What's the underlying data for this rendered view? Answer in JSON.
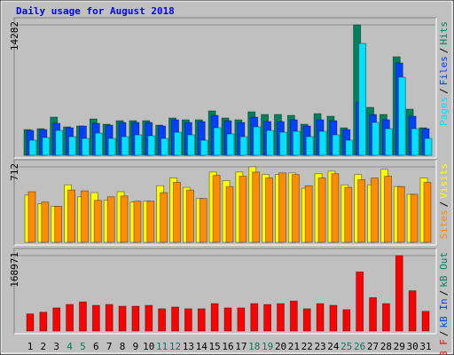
{
  "chart_data": [
    {
      "type": "bar",
      "title": "Daily usage for August 2018",
      "ylim": [
        0,
        14282
      ],
      "yticks": [
        14282
      ],
      "legend_separator": "/",
      "series": [
        {
          "name": "Hits",
          "color": "#00805c",
          "values": [
            2819,
            2916,
            4180,
            3110,
            3208,
            3985,
            3402,
            3791,
            3791,
            3791,
            3305,
            4083,
            3888,
            3888,
            4860,
            4083,
            3888,
            4763,
            4471,
            4471,
            4374,
            3402,
            4568,
            4277,
            3013,
            14282,
            5249,
            4471,
            10789,
            5054,
            3013
          ]
        },
        {
          "name": "Files",
          "color": "#0040ff",
          "values": [
            2722,
            2819,
            3499,
            3013,
            3208,
            3499,
            3305,
            3596,
            3596,
            3596,
            3208,
            3888,
            3596,
            3694,
            4374,
            3791,
            3596,
            4180,
            3694,
            3694,
            3888,
            3208,
            3888,
            3791,
            2819,
            5832,
            4471,
            3888,
            10109,
            4277,
            2916
          ]
        },
        {
          "name": "Pages",
          "color": "#00e0ff",
          "values": [
            1652,
            1944,
            2722,
            2041,
            1847,
            2430,
            1847,
            2041,
            2236,
            2138,
            1847,
            2527,
            2236,
            1652,
            3013,
            2333,
            2041,
            3110,
            2722,
            2527,
            2624,
            2041,
            2624,
            2236,
            1652,
            12247,
            3596,
            2916,
            8554,
            2916,
            1847
          ]
        }
      ]
    },
    {
      "type": "bar",
      "ylim": [
        0,
        712
      ],
      "yticks": [
        712
      ],
      "legend_separator": "/",
      "series": [
        {
          "name": "Visits",
          "color": "#ffff00",
          "values": [
            445,
            364,
            340,
            542,
            429,
            469,
            396,
            477,
            380,
            388,
            534,
            607,
            518,
            413,
            663,
            582,
            663,
            712,
            639,
            639,
            655,
            510,
            647,
            671,
            542,
            639,
            542,
            688,
            526,
            453,
            607
          ]
        },
        {
          "name": "Sites",
          "color": "#ff8c00",
          "values": [
            477,
            380,
            340,
            493,
            485,
            396,
            429,
            437,
            388,
            388,
            469,
            566,
            493,
            413,
            631,
            526,
            623,
            663,
            607,
            655,
            639,
            534,
            607,
            647,
            518,
            591,
            607,
            623,
            526,
            453,
            566
          ]
        }
      ]
    },
    {
      "type": "bar",
      "ylim": [
        0,
        168971
      ],
      "yticks": [
        168971
      ],
      "legend_separator": "/",
      "categories": [
        "1",
        "2",
        "3",
        "4",
        "5",
        "6",
        "7",
        "8",
        "9",
        "10",
        "11",
        "12",
        "13",
        "14",
        "15",
        "16",
        "17",
        "18",
        "19",
        "20",
        "21",
        "22",
        "23",
        "24",
        "25",
        "26",
        "27",
        "28",
        "29",
        "30",
        "31"
      ],
      "category_colors": [
        "#000000",
        "#000000",
        "#000000",
        "#00805c",
        "#00805c",
        "#000000",
        "#000000",
        "#000000",
        "#000000",
        "#000000",
        "#00805c",
        "#00805c",
        "#000000",
        "#000000",
        "#000000",
        "#000000",
        "#000000",
        "#00805c",
        "#00805c",
        "#000000",
        "#000000",
        "#000000",
        "#000000",
        "#000000",
        "#00805c",
        "#00805c",
        "#000000",
        "#000000",
        "#000000",
        "#000000",
        "#000000"
      ],
      "series": [
        {
          "name": "kB F",
          "color": "#ff0000",
          "values": [
            38400,
            42240,
            51840,
            59520,
            65280,
            57600,
            59520,
            55680,
            55680,
            57600,
            49920,
            53760,
            49920,
            49920,
            61440,
            51840,
            51840,
            61440,
            59520,
            61440,
            67200,
            49920,
            61440,
            57600,
            48000,
            132480,
            74880,
            61440,
            168971,
            90240,
            44160
          ]
        }
      ],
      "legend_extra": [
        {
          "name": "kB In",
          "color": "#0040ff"
        },
        {
          "name": "kB Out",
          "color": "#00805c"
        }
      ]
    }
  ]
}
